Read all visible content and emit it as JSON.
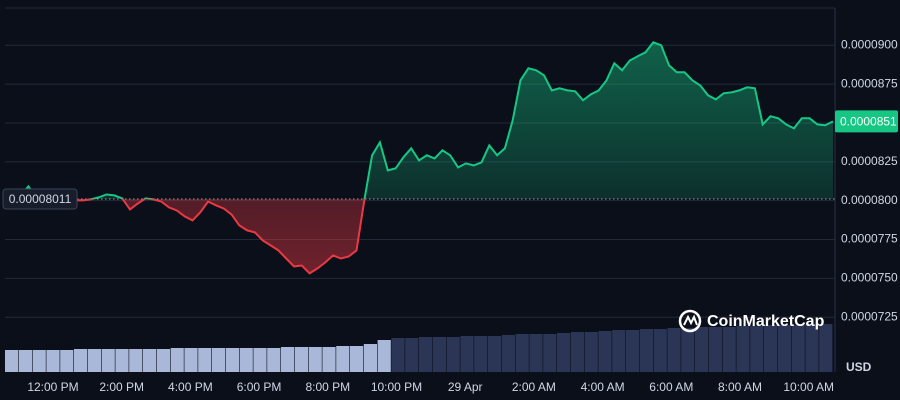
{
  "chart_data": {
    "type": "line",
    "values": [
      8.021e-05,
      8.028e-05,
      8.034e-05,
      8.092e-05,
      8.021e-05,
      8.008e-05,
      8.008e-05,
      8.002e-05,
      8.002e-05,
      8.002e-05,
      8.002e-05,
      8.008e-05,
      8.021e-05,
      8.04e-05,
      8.034e-05,
      8.015e-05,
      7.944e-05,
      7.982e-05,
      8.015e-05,
      8.008e-05,
      7.995e-05,
      7.957e-05,
      7.937e-05,
      7.899e-05,
      7.873e-05,
      7.925e-05,
      7.995e-05,
      7.97e-05,
      7.95e-05,
      7.912e-05,
      7.841e-05,
      7.809e-05,
      7.796e-05,
      7.744e-05,
      7.712e-05,
      7.68e-05,
      7.628e-05,
      7.577e-05,
      7.583e-05,
      7.532e-05,
      7.564e-05,
      7.603e-05,
      7.648e-05,
      7.628e-05,
      7.641e-05,
      7.68e-05,
      8.002e-05,
      8.292e-05,
      8.375e-05,
      8.195e-05,
      8.208e-05,
      8.279e-05,
      8.337e-05,
      8.259e-05,
      8.292e-05,
      8.272e-05,
      8.324e-05,
      8.292e-05,
      8.214e-05,
      8.24e-05,
      8.227e-05,
      8.247e-05,
      8.356e-05,
      8.292e-05,
      8.337e-05,
      8.517e-05,
      8.775e-05,
      8.852e-05,
      8.839e-05,
      8.807e-05,
      8.71e-05,
      8.723e-05,
      8.71e-05,
      8.704e-05,
      8.646e-05,
      8.684e-05,
      8.71e-05,
      8.775e-05,
      8.884e-05,
      8.839e-05,
      8.903e-05,
      8.929e-05,
      8.955e-05,
      9.019e-05,
      9e-05,
      8.871e-05,
      8.826e-05,
      8.826e-05,
      8.775e-05,
      8.742e-05,
      8.678e-05,
      8.652e-05,
      8.691e-05,
      8.697e-05,
      8.71e-05,
      8.73e-05,
      8.723e-05,
      8.491e-05,
      8.543e-05,
      8.53e-05,
      8.491e-05,
      8.465e-05,
      8.53e-05,
      8.53e-05,
      8.491e-05,
      8.485e-05,
      8.51e-05
    ],
    "color_up": "#16c784",
    "color_down": "#ea3943",
    "baseline": {
      "value": 8.011e-05,
      "label": "0.00008011"
    },
    "last_price": {
      "value": 8.51e-05,
      "label": "0.0000851"
    },
    "ylim": [
      7.2e-05,
      9.24e-05
    ],
    "yticks": [
      {
        "value": 7.25e-05,
        "label": "0.0000725"
      },
      {
        "value": 7.5e-05,
        "label": "0.0000750"
      },
      {
        "value": 7.75e-05,
        "label": "0.0000775"
      },
      {
        "value": 8e-05,
        "label": "0.0000800"
      },
      {
        "value": 8.25e-05,
        "label": "0.0000825"
      },
      {
        "value": 8.5e-05,
        "label": "0.0000850"
      },
      {
        "value": 8.75e-05,
        "label": "0.0000875"
      },
      {
        "value": 9e-05,
        "label": "0.0000900"
      }
    ],
    "xticks": [
      "12:00 PM",
      "2:00 PM",
      "4:00 PM",
      "6:00 PM",
      "8:00 PM",
      "10:00 PM",
      "29 Apr",
      "2:00 AM",
      "4:00 AM",
      "6:00 AM",
      "8:00 AM",
      "10:00 AM"
    ],
    "grid": true,
    "volume_series": [
      {
        "color": "#a9b8d8",
        "values": [
          22,
          22,
          22,
          22,
          22,
          23,
          23,
          23,
          23,
          23,
          23,
          23,
          24,
          24,
          24,
          24,
          24,
          24,
          24,
          24,
          25,
          25,
          25,
          25,
          26,
          26,
          28,
          32
        ]
      },
      {
        "color": "#2b3556",
        "values": [
          34,
          34,
          35,
          35,
          35,
          36,
          36,
          36,
          37,
          38,
          38,
          38,
          39,
          40,
          40,
          41,
          42,
          42,
          43,
          43,
          44,
          44,
          45,
          45,
          45,
          46,
          46,
          47,
          47,
          47,
          48,
          48
        ]
      }
    ],
    "currency": "USD",
    "watermark": "CoinMarketCap"
  }
}
